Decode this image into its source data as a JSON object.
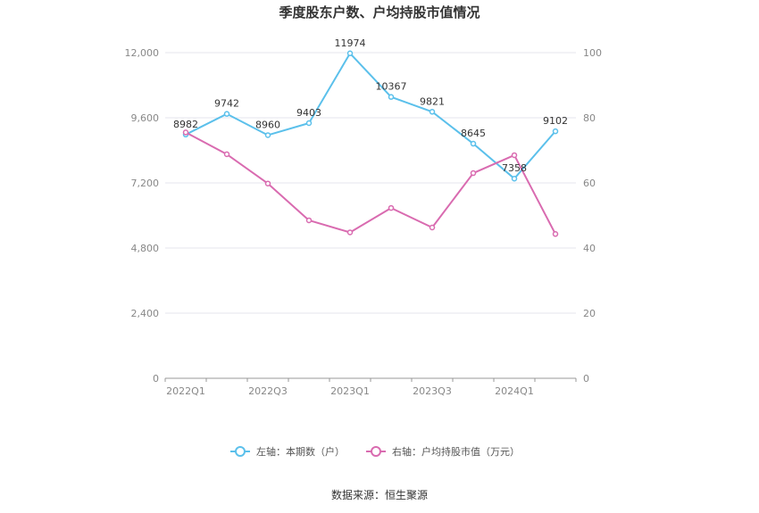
{
  "chart_data": {
    "type": "line",
    "title": "季度股东户数、户均持股市值情况",
    "x": [
      "2022Q1",
      "2022Q2",
      "2022Q3",
      "2022Q4",
      "2023Q1",
      "2023Q2",
      "2023Q3",
      "2023Q4",
      "2024Q1",
      "2024Q2"
    ],
    "x_tick_labels": [
      "2022Q1",
      "2022Q3",
      "2023Q1",
      "2023Q3",
      "2024Q1"
    ],
    "y_left": {
      "ticks": [
        "0",
        "2,400",
        "4,800",
        "7,200",
        "9,600",
        "12,000"
      ],
      "min": 0,
      "max": 12000
    },
    "y_right": {
      "ticks": [
        "0",
        "20",
        "40",
        "60",
        "80",
        "100"
      ],
      "min": 0,
      "max": 100
    },
    "grid": true,
    "legend_position": "bottom",
    "series": [
      {
        "name": "左轴：本期数（户）",
        "axis": "left",
        "color": "#5bc0eb",
        "values": [
          8982,
          9742,
          8960,
          9403,
          11974,
          10367,
          9821,
          8645,
          7358,
          9102
        ],
        "labels": [
          "8982",
          "9742",
          "8960",
          "9403",
          "11974",
          "10367",
          "9821",
          "8645",
          "7358",
          "9102"
        ]
      },
      {
        "name": "右轴：户均持股市值（万元）",
        "axis": "right",
        "color": "#d96bb0",
        "values": [
          75.5,
          68.8,
          59.8,
          48.5,
          44.8,
          52.3,
          46.3,
          63.0,
          68.5,
          44.3
        ]
      }
    ],
    "source": "数据来源：恒生聚源"
  }
}
